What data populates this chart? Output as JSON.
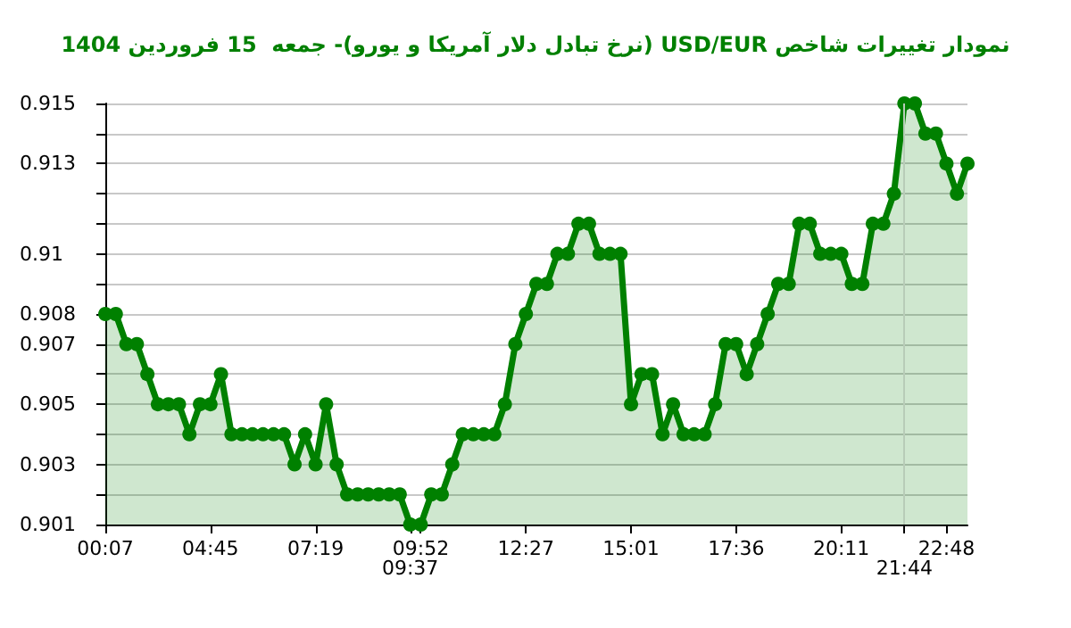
{
  "chart_data": {
    "type": "area",
    "title": "نمودار تغییرات شاخص USD/EUR (نرخ تبادل دلار آمریکا و یورو)- جمعه  15 فروردین 1404",
    "categories": [
      "00:07",
      null,
      null,
      null,
      null,
      null,
      null,
      null,
      null,
      null,
      "04:45",
      null,
      null,
      null,
      null,
      null,
      null,
      null,
      null,
      null,
      "07:19",
      null,
      null,
      null,
      null,
      null,
      null,
      null,
      null,
      "09:37",
      "09:52",
      null,
      null,
      null,
      null,
      null,
      null,
      null,
      null,
      null,
      "12:27",
      null,
      null,
      null,
      null,
      null,
      null,
      null,
      null,
      null,
      "15:01",
      null,
      null,
      null,
      null,
      null,
      null,
      null,
      null,
      null,
      "17:36",
      null,
      null,
      null,
      null,
      null,
      null,
      null,
      null,
      null,
      "20:11",
      null,
      null,
      null,
      null,
      null,
      "21:44",
      null,
      null,
      null,
      "22:48",
      null,
      null
    ],
    "series": [
      {
        "color": "#008000",
        "values": [
          0.908,
          0.908,
          0.907,
          0.907,
          0.906,
          0.905,
          0.905,
          0.905,
          0.904,
          0.905,
          0.905,
          0.906,
          0.904,
          0.904,
          0.904,
          0.904,
          0.904,
          0.904,
          0.903,
          0.904,
          0.903,
          0.905,
          0.903,
          0.902,
          0.902,
          0.902,
          0.902,
          0.902,
          0.902,
          0.901,
          0.901,
          0.902,
          0.902,
          0.903,
          0.904,
          0.904,
          0.904,
          0.904,
          0.905,
          0.907,
          0.908,
          0.909,
          0.909,
          0.91,
          0.91,
          0.911,
          0.911,
          0.91,
          0.91,
          0.91,
          0.905,
          0.906,
          0.906,
          0.904,
          0.905,
          0.904,
          0.904,
          0.904,
          0.905,
          0.907,
          0.907,
          0.906,
          0.907,
          0.908,
          0.909,
          0.909,
          0.911,
          0.911,
          0.91,
          0.91,
          0.91,
          0.909,
          0.909,
          0.911,
          0.911,
          0.912,
          0.915,
          0.915,
          0.914,
          0.914,
          0.913,
          0.912,
          0.913
        ]
      }
    ],
    "ylim": [
      0.901,
      0.915
    ],
    "yticks": [
      0.901,
      {
        "value": 0.902,
        "label": null
      },
      0.903,
      {
        "value": 0.904,
        "label": null
      },
      0.905,
      {
        "value": 0.906,
        "label": null
      },
      0.907,
      0.908,
      {
        "value": 0.909,
        "label": null
      },
      0.91,
      {
        "value": 0.911,
        "label": null
      },
      {
        "value": 0.912,
        "label": null
      },
      0.913,
      {
        "value": 0.914,
        "label": null
      },
      0.915
    ],
    "ref_lines": [
      {
        "axis": "x",
        "value": "21:44",
        "color": "#b8ccb8"
      }
    ],
    "grid": "y",
    "marker": "circle",
    "line_style": "solid"
  }
}
